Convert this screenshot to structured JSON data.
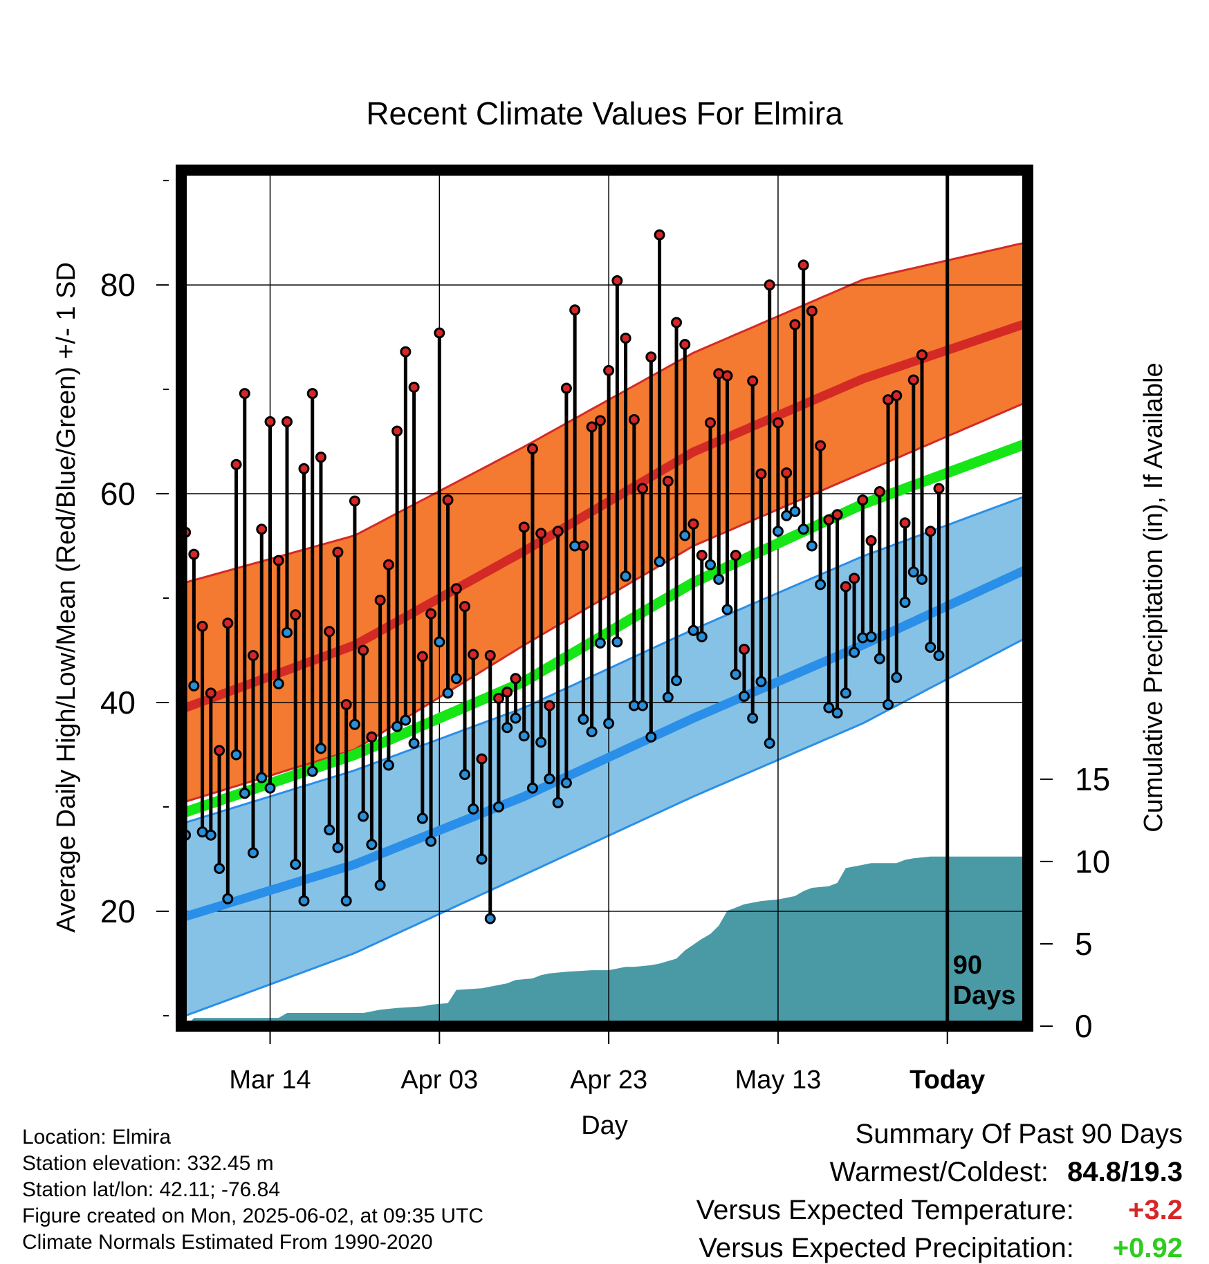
{
  "chart_data": {
    "type": "line",
    "title": "Recent Climate Values For Elmira",
    "xlabel": "Day",
    "ylabel": "Average Daily High/Low/Mean (Red/Blue/Green) +/- 1 SD",
    "y2label": "Cumulative Precipitation (in), If Available",
    "x_tick_labels": [
      "Mar 14",
      "Apr 03",
      "Apr 23",
      "May 13",
      "Today"
    ],
    "x_tick_days": [
      10,
      30,
      50,
      70,
      90
    ],
    "x_range": [
      -0.5,
      99.5
    ],
    "ylim": [
      9,
      91
    ],
    "y_ticks": [
      20,
      40,
      60,
      80
    ],
    "y2lim": [
      0,
      52
    ],
    "y2_ticks": [
      0,
      5,
      10,
      15
    ],
    "grid": true,
    "today_label": "90 Days",
    "today_day": 90,
    "normals": {
      "days": [
        0,
        20,
        40,
        60,
        80,
        100
      ],
      "high_mean": [
        39.5,
        45.5,
        54.5,
        64,
        71,
        76.5
      ],
      "high_upper": [
        51.5,
        56,
        64.5,
        73.5,
        80.5,
        84.2
      ],
      "high_lower": [
        30.5,
        35.5,
        45.5,
        55,
        62,
        69
      ],
      "mean": [
        29.5,
        35,
        42,
        51.5,
        59,
        65
      ],
      "low_mean": [
        19.5,
        24.5,
        31,
        38.5,
        45.5,
        53
      ],
      "low_upper": [
        28.5,
        33.5,
        39.5,
        47,
        54,
        60
      ],
      "low_lower": [
        10,
        16,
        23.5,
        31,
        38,
        46.5
      ]
    },
    "series": [
      {
        "name": "High",
        "color": "#d62728",
        "values": [
          56.3,
          54.2,
          47.3,
          40.9,
          35.4,
          47.6,
          62.8,
          69.6,
          44.5,
          56.6,
          66.9,
          53.6,
          66.9,
          48.4,
          62.4,
          69.6,
          63.5,
          46.8,
          54.4,
          39.8,
          59.3,
          45,
          36.7,
          49.8,
          53.2,
          66,
          73.6,
          70.2,
          44.4,
          48.5,
          75.4,
          59.4,
          50.9,
          49.2,
          44.6,
          34.6,
          44.5,
          40.4,
          41,
          42.3,
          56.8,
          64.3,
          56.2,
          39.7,
          56.4,
          70.1,
          77.6,
          55,
          66.4,
          67,
          71.8,
          80.4,
          74.9,
          67.1,
          60.5,
          73.1,
          84.8,
          61.2,
          76.4,
          74.3,
          57.1,
          54.1,
          66.8,
          71.5,
          71.3,
          54.1,
          45.1,
          70.8,
          61.9,
          80,
          66.8,
          62,
          76.2,
          81.9,
          77.5,
          64.6,
          57.5,
          58,
          51.1,
          51.9,
          59.4,
          55.5,
          60.2,
          69,
          69.4,
          57.2,
          70.9,
          73.3,
          56.4,
          60.5
        ]
      },
      {
        "name": "Low",
        "color": "#2a8fd8",
        "values": [
          27.3,
          41.6,
          27.6,
          27.3,
          24.1,
          21.2,
          35,
          31.3,
          25.6,
          32.8,
          31.8,
          41.8,
          46.7,
          24.5,
          21,
          33.4,
          35.6,
          27.8,
          26.1,
          21,
          37.9,
          29.1,
          26.4,
          22.5,
          34,
          37.7,
          38.3,
          36.1,
          28.9,
          26.7,
          45.8,
          40.9,
          42.3,
          33.1,
          29.8,
          25,
          19.3,
          30,
          37.6,
          38.5,
          36.8,
          31.8,
          36.2,
          32.7,
          30.4,
          32.3,
          55,
          38.4,
          37.2,
          45.7,
          38,
          45.8,
          52.1,
          39.7,
          39.7,
          36.7,
          53.5,
          40.5,
          42.1,
          56,
          46.9,
          46.3,
          53.2,
          51.8,
          48.9,
          42.7,
          40.6,
          38.5,
          42,
          36.1,
          56.4,
          57.9,
          58.3,
          56.6,
          55,
          51.3,
          39.5,
          39,
          40.9,
          44.8,
          46.2,
          46.3,
          44.2,
          39.8,
          42.4,
          49.6,
          52.5,
          51.8,
          45.3,
          44.5
        ]
      }
    ],
    "precip": {
      "name": "Cumulative Precipitation",
      "color": "#4a9aa6",
      "days": [
        0,
        0.5,
        1,
        11,
        12,
        21,
        23,
        25,
        28,
        29,
        31,
        32,
        35,
        37,
        38,
        39,
        41,
        42,
        43,
        45,
        48,
        49,
        50,
        52,
        53,
        55,
        56,
        58,
        59,
        61,
        62,
        63,
        64,
        65,
        66,
        68,
        70,
        72,
        73,
        74,
        76,
        77,
        78,
        80,
        81,
        84,
        85,
        86,
        88,
        89,
        99
      ],
      "values": [
        0,
        0.2,
        0.5,
        0.5,
        0.8,
        0.8,
        1,
        1.1,
        1.2,
        1.3,
        1.4,
        2.2,
        2.3,
        2.5,
        2.6,
        2.8,
        2.9,
        3.1,
        3.2,
        3.3,
        3.4,
        3.4,
        3.4,
        3.6,
        3.6,
        3.7,
        3.8,
        4.1,
        4.6,
        5.3,
        5.6,
        6.1,
        7,
        7.2,
        7.4,
        7.6,
        7.7,
        7.9,
        8.2,
        8.4,
        8.5,
        8.7,
        9.6,
        9.8,
        9.9,
        9.9,
        10.1,
        10.2,
        10.3,
        10.3,
        10.3
      ]
    }
  },
  "footer": {
    "location": "Location: Elmira",
    "elevation": "Station elevation: 332.45 m",
    "latlon": "Station lat/lon: 42.11; -76.84",
    "created": "Figure created on Mon, 2025-06-02, at 09:35 UTC",
    "normals_note": "Climate Normals Estimated From 1990-2020"
  },
  "summary": {
    "title": "Summary Of Past 90 Days",
    "warm_cold_label": "Warmest/Coldest:",
    "warm_cold_value": "84.8/19.3",
    "temp_label": "Versus Expected Temperature:",
    "temp_value": "+3.2",
    "precip_label": "Versus Expected Precipitation:",
    "precip_value": "+0.92",
    "temp_color": "#d62728",
    "precip_color": "#2ecc1e"
  },
  "colors": {
    "high_band": "#f37a30",
    "high_line": "#d42a26",
    "low_band": "#86c2e6",
    "low_line": "#2a8fe8",
    "mean_line": "#16e616",
    "precip_fill": "#4a9aa6"
  }
}
